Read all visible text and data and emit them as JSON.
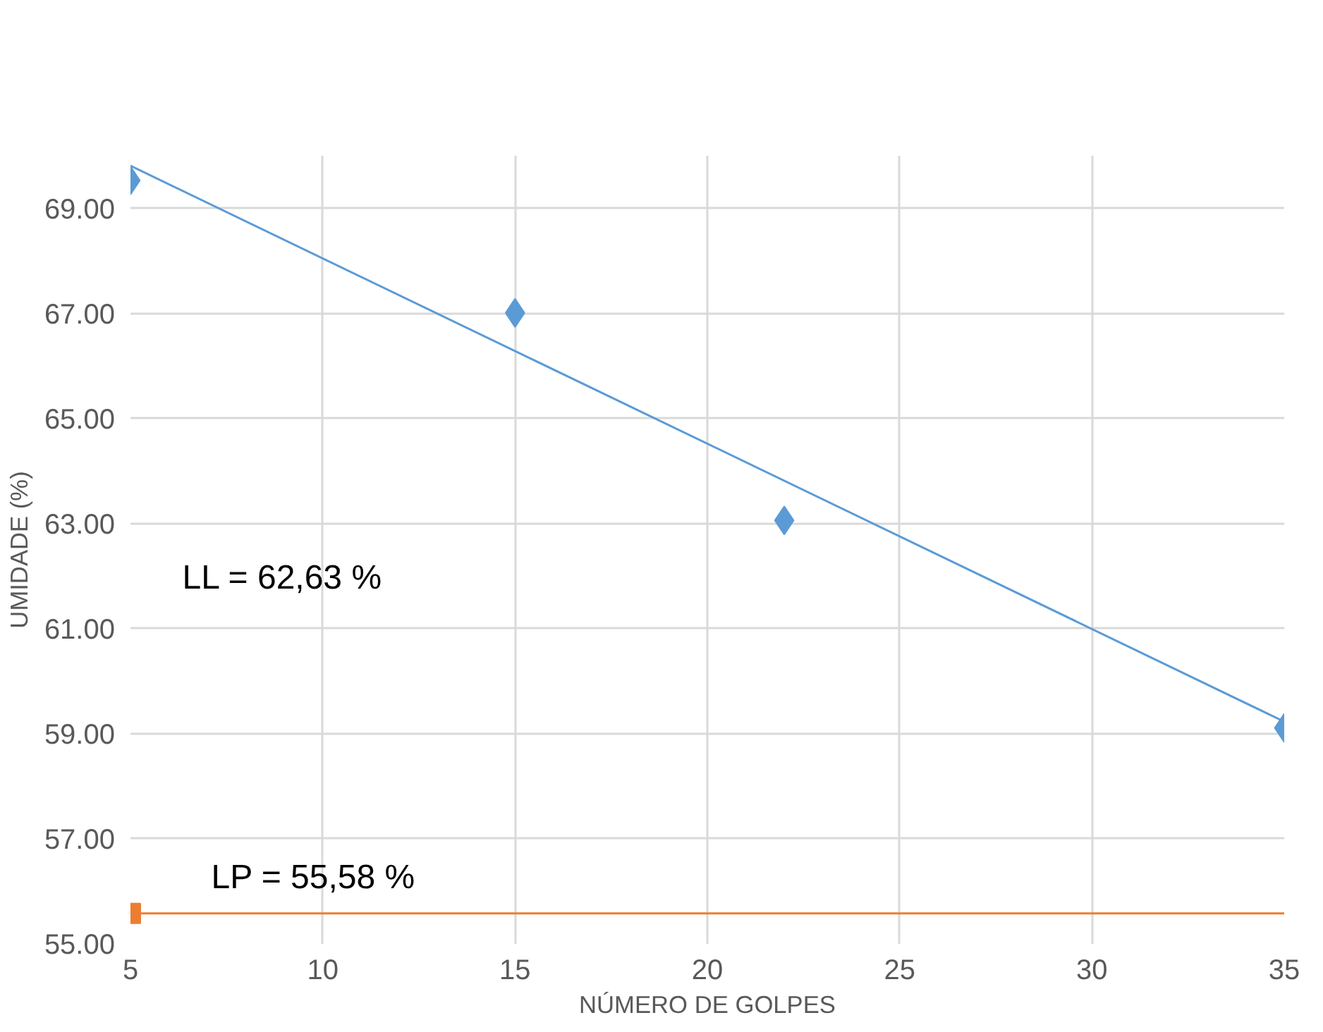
{
  "chart_data": {
    "type": "scatter",
    "xlabel": "NÚMERO DE GOLPES",
    "ylabel": "UMIDADE (%)",
    "xlim": [
      5,
      35
    ],
    "xticks": [
      5,
      10,
      15,
      20,
      25,
      30,
      35
    ],
    "ylim": [
      55,
      70
    ],
    "yticks": [
      {
        "value": 55,
        "label": "55.00"
      },
      {
        "value": 57,
        "label": "57.00"
      },
      {
        "value": 59,
        "label": "59.00"
      },
      {
        "value": 61,
        "label": "61.00"
      },
      {
        "value": 63,
        "label": "63.00"
      },
      {
        "value": 65,
        "label": "65.00"
      },
      {
        "value": 67,
        "label": "67.00"
      },
      {
        "value": 69,
        "label": "69.00"
      }
    ],
    "grid": true,
    "series": [
      {
        "marker": "diamond",
        "color": "#5b9bd5",
        "x": [
          5,
          15,
          22,
          35
        ],
        "values": [
          69.53,
          67.01,
          63.06,
          59.11
        ]
      },
      {
        "type": "line",
        "marker": "none",
        "color": "#5b9bd5",
        "x": [
          5,
          35
        ],
        "values": [
          69.81,
          59.23
        ]
      },
      {
        "marker": "square",
        "color": "#ed7d31",
        "x": [
          5
        ],
        "values": [
          55.58
        ]
      },
      {
        "type": "line",
        "marker": "none",
        "color": "#ed7d31",
        "x": [
          5,
          35
        ],
        "values": [
          55.58,
          55.58
        ]
      }
    ],
    "annotations": [
      "LL = 62,63 %",
      "LP = 55,58 %"
    ]
  }
}
